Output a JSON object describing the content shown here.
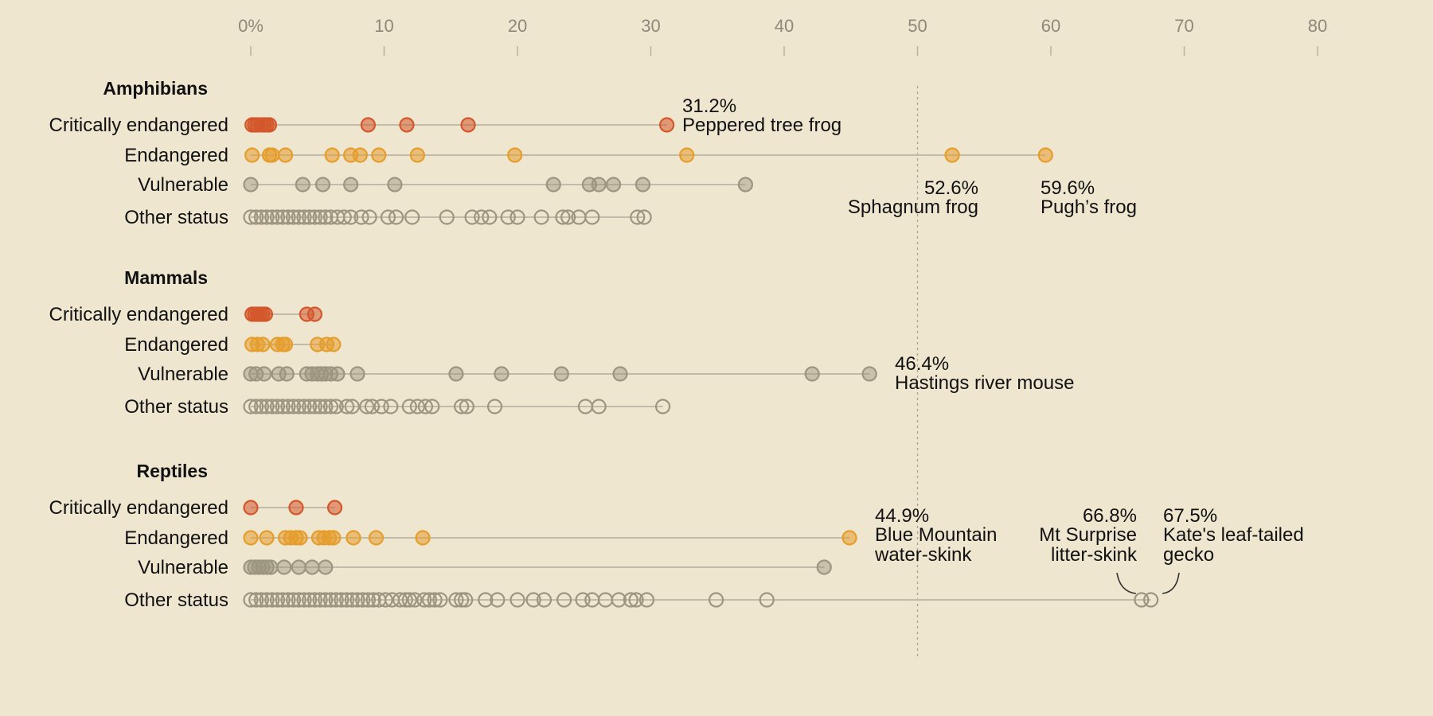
{
  "colors": {
    "background": "#efe6d0",
    "critically_endangered": "#d4572c",
    "endangered": "#e59d2c",
    "vulnerable": "#9c957f",
    "other": "#9c957f",
    "axis": "#b9b2a1",
    "reference_line": "#a9a291"
  },
  "chart_data": {
    "type": "scatter",
    "xlim": [
      0,
      80
    ],
    "ticks": [
      0,
      10,
      20,
      30,
      40,
      50,
      60,
      70,
      80
    ],
    "tick_labels": [
      "0%",
      "10",
      "20",
      "30",
      "40",
      "50",
      "60",
      "70",
      "80"
    ],
    "reference_line": 50,
    "groups": [
      {
        "title": "Amphibians",
        "rows": [
          {
            "label": "Critically endangered",
            "status": "critically_endangered",
            "values": [
              0.1,
              0.3,
              0.5,
              0.8,
              1.0,
              1.2,
              1.4,
              8.8,
              11.7,
              16.3,
              31.2
            ]
          },
          {
            "label": "Endangered",
            "status": "endangered",
            "values": [
              0.1,
              1.4,
              1.6,
              2.6,
              6.1,
              7.5,
              8.2,
              9.6,
              12.5,
              19.8,
              32.7,
              52.6,
              59.6
            ]
          },
          {
            "label": "Vulnerable",
            "status": "vulnerable",
            "values": [
              0,
              3.9,
              5.4,
              7.5,
              10.8,
              22.7,
              25.4,
              26.1,
              27.2,
              29.4,
              37.1
            ]
          },
          {
            "label": "Other status",
            "status": "other",
            "values": [
              0,
              0.4,
              0.8,
              1.2,
              1.6,
              2.0,
              2.4,
              2.8,
              3.2,
              3.6,
              4.0,
              4.4,
              4.8,
              5.2,
              5.6,
              6.0,
              6.5,
              7.0,
              7.5,
              8.3,
              8.9,
              10.3,
              10.9,
              12.1,
              14.7,
              16.6,
              17.3,
              17.9,
              19.3,
              20.0,
              21.8,
              23.4,
              23.8,
              24.6,
              25.6,
              29.0,
              29.5
            ]
          }
        ],
        "annotations": [
          {
            "value": 31.2,
            "row": 0,
            "pct": "31.2%",
            "name": [
              "Peppered tree frog"
            ]
          },
          {
            "value": 52.6,
            "row": 1,
            "pct": "52.6%",
            "name": [
              "Sphagnum frog"
            ]
          },
          {
            "value": 59.6,
            "row": 1,
            "pct": "59.6%",
            "name": [
              "Pugh’s frog"
            ]
          }
        ]
      },
      {
        "title": "Mammals",
        "rows": [
          {
            "label": "Critically endangered",
            "status": "critically_endangered",
            "values": [
              0.1,
              0.3,
              0.5,
              0.7,
              0.9,
              1.1,
              4.2,
              4.8
            ]
          },
          {
            "label": "Endangered",
            "status": "endangered",
            "values": [
              0.1,
              0.5,
              0.9,
              2.0,
              2.4,
              2.6,
              5.0,
              5.7,
              6.2
            ]
          },
          {
            "label": "Vulnerable",
            "status": "vulnerable",
            "values": [
              0,
              0.4,
              1.0,
              2.1,
              2.7,
              4.2,
              4.6,
              5.0,
              5.3,
              5.6,
              6.0,
              6.5,
              8.0,
              15.4,
              18.8,
              23.3,
              27.7,
              42.1,
              46.4
            ]
          },
          {
            "label": "Other status",
            "status": "other",
            "values": [
              0,
              0.4,
              0.8,
              1.2,
              1.6,
              2.0,
              2.4,
              2.8,
              3.2,
              3.6,
              4.0,
              4.4,
              4.8,
              5.2,
              5.6,
              6.0,
              6.4,
              7.2,
              7.6,
              8.7,
              9.1,
              9.8,
              10.5,
              11.9,
              12.5,
              13.1,
              13.6,
              15.8,
              16.2,
              18.3,
              25.1,
              26.1,
              30.9
            ]
          }
        ],
        "annotations": [
          {
            "value": 46.4,
            "row": 2,
            "pct": "46.4%",
            "name": [
              "Hastings river mouse"
            ]
          }
        ]
      },
      {
        "title": "Reptiles",
        "rows": [
          {
            "label": "Critically endangered",
            "status": "critically_endangered",
            "values": [
              0,
              3.4,
              6.3
            ]
          },
          {
            "label": "Endangered",
            "status": "endangered",
            "values": [
              0,
              1.2,
              2.6,
              3.0,
              3.4,
              3.7,
              5.1,
              5.5,
              5.9,
              6.2,
              7.7,
              9.4,
              12.9,
              44.9
            ]
          },
          {
            "label": "Vulnerable",
            "status": "vulnerable",
            "values": [
              0,
              0.3,
              0.6,
              0.9,
              1.2,
              1.5,
              2.5,
              3.6,
              4.6,
              5.6,
              43.0
            ]
          },
          {
            "label": "Other status",
            "status": "other",
            "values": [
              0,
              0.4,
              0.8,
              1.2,
              1.6,
              2.0,
              2.4,
              2.8,
              3.2,
              3.6,
              4.0,
              4.4,
              4.8,
              5.2,
              5.6,
              6.0,
              6.4,
              6.8,
              7.2,
              7.6,
              8.0,
              8.4,
              8.8,
              9.2,
              9.6,
              10.1,
              10.6,
              11.2,
              11.6,
              11.9,
              12.3,
              13.0,
              13.4,
              13.8,
              14.2,
              15.4,
              15.8,
              16.1,
              17.6,
              18.5,
              20.0,
              21.2,
              22.0,
              23.5,
              24.9,
              25.6,
              26.6,
              27.6,
              28.5,
              28.9,
              29.7,
              34.9,
              38.7,
              66.8,
              67.5
            ]
          }
        ],
        "annotations": [
          {
            "value": 44.9,
            "row": 1,
            "pct": "44.9%",
            "name": [
              "Blue Mountain",
              "water-skink"
            ]
          },
          {
            "value": 66.8,
            "row": 3,
            "pct": "66.8%",
            "name": [
              "Mt Surprise",
              "litter-skink"
            ]
          },
          {
            "value": 67.5,
            "row": 3,
            "pct": "67.5%",
            "name": [
              "Kate's leaf-tailed",
              "gecko"
            ]
          }
        ]
      }
    ]
  }
}
